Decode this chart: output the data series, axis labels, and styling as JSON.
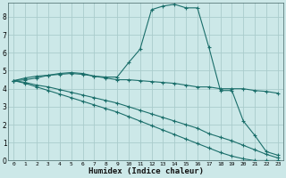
{
  "xlabel": "Humidex (Indice chaleur)",
  "background_color": "#cce8e8",
  "grid_color": "#aacccc",
  "line_color": "#1a6e6a",
  "xlim": [
    -0.5,
    23.5
  ],
  "ylim": [
    0,
    8.8
  ],
  "xticks": [
    0,
    1,
    2,
    3,
    4,
    5,
    6,
    7,
    8,
    9,
    10,
    11,
    12,
    13,
    14,
    15,
    16,
    17,
    18,
    19,
    20,
    21,
    22,
    23
  ],
  "yticks": [
    0,
    1,
    2,
    3,
    4,
    5,
    6,
    7,
    8
  ],
  "series": [
    {
      "x": [
        0,
        1,
        2,
        3,
        4,
        5,
        6,
        7,
        8,
        9,
        10,
        11,
        12,
        13,
        14,
        15,
        16,
        17,
        18,
        19,
        20,
        21,
        22,
        23
      ],
      "y": [
        4.45,
        4.6,
        4.7,
        4.75,
        4.85,
        4.9,
        4.85,
        4.7,
        4.65,
        4.65,
        5.45,
        6.2,
        8.4,
        8.6,
        8.7,
        8.5,
        8.5,
        6.3,
        3.9,
        3.9,
        2.2,
        1.4,
        0.5,
        0.3
      ]
    },
    {
      "x": [
        0,
        1,
        2,
        3,
        4,
        5,
        6,
        7,
        8,
        9,
        10,
        11,
        12,
        13,
        14,
        15,
        16,
        17,
        18,
        19,
        20,
        21,
        22,
        23
      ],
      "y": [
        4.45,
        4.5,
        4.6,
        4.75,
        4.8,
        4.85,
        4.8,
        4.7,
        4.6,
        4.5,
        4.5,
        4.45,
        4.4,
        4.35,
        4.3,
        4.2,
        4.1,
        4.1,
        4.0,
        4.0,
        4.0,
        3.9,
        3.85,
        3.75
      ]
    },
    {
      "x": [
        0,
        1,
        2,
        3,
        4,
        5,
        6,
        7,
        8,
        9,
        10,
        11,
        12,
        13,
        14,
        15,
        16,
        17,
        18,
        19,
        20,
        21,
        22,
        23
      ],
      "y": [
        4.45,
        4.35,
        4.2,
        4.1,
        3.95,
        3.8,
        3.65,
        3.5,
        3.35,
        3.2,
        3.0,
        2.8,
        2.6,
        2.4,
        2.2,
        2.0,
        1.8,
        1.5,
        1.3,
        1.1,
        0.85,
        0.6,
        0.35,
        0.15
      ]
    },
    {
      "x": [
        0,
        1,
        2,
        3,
        4,
        5,
        6,
        7,
        8,
        9,
        10,
        11,
        12,
        13,
        14,
        15,
        16,
        17,
        18,
        19,
        20,
        21,
        22,
        23
      ],
      "y": [
        4.45,
        4.3,
        4.1,
        3.9,
        3.7,
        3.5,
        3.3,
        3.1,
        2.9,
        2.7,
        2.45,
        2.2,
        1.95,
        1.7,
        1.45,
        1.2,
        0.95,
        0.7,
        0.45,
        0.25,
        0.1,
        0.0,
        0.0,
        0.0
      ]
    }
  ]
}
